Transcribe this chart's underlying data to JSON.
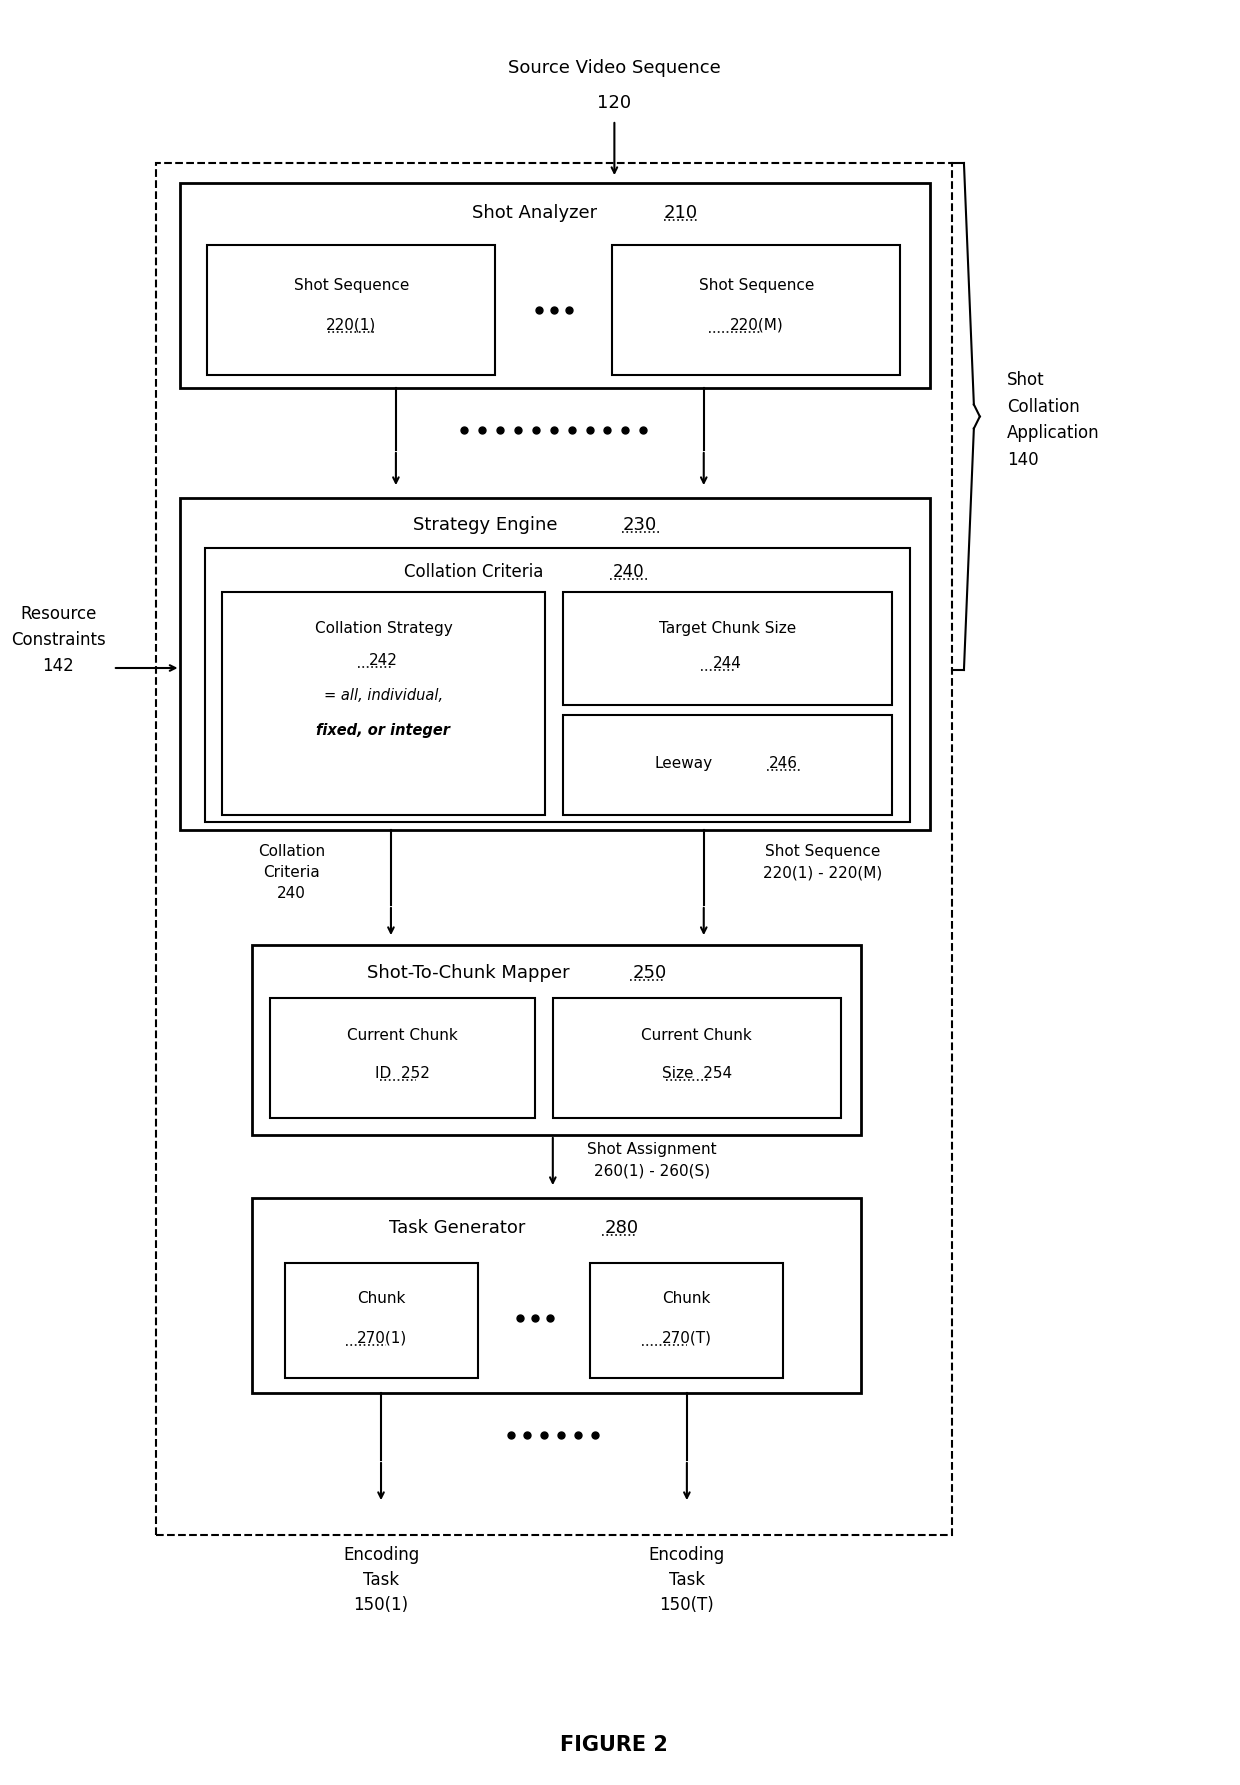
{
  "bg_color": "#ffffff",
  "fig_width": 12.4,
  "fig_height": 17.85,
  "title": "FIGURE 2",
  "source_video_label": "Source Video Sequence",
  "source_video_num": "120",
  "shot_collation_label": "Shot\nCollation\nApplication\n140",
  "resource_constraints_label": "Resource\nConstraints\n142",
  "shot_analyzer_label": "Shot Analyzer",
  "shot_analyzer_num": "210",
  "shot_seq1_line1": "Shot Sequence",
  "shot_seq1_line2": "220(1)",
  "shot_seq2_line1": "Shot Sequence",
  "shot_seq2_line2": "220(M)",
  "strategy_engine_label": "Strategy Engine",
  "strategy_engine_num": "230",
  "collation_criteria_outer_label": "Collation Criteria",
  "collation_criteria_outer_num": "240",
  "collation_strategy_line1": "Collation Strategy",
  "collation_strategy_num": "242",
  "collation_strategy_line3": "= all, individual,",
  "collation_strategy_line4": "fixed, or integer",
  "target_chunk_size_line1": "Target Chunk Size",
  "target_chunk_size_num": "244",
  "leeway_label": "Leeway",
  "leeway_num": "246",
  "collation_criteria_arrow_label": "Collation\nCriteria\n240",
  "shot_sequence_arrow_label": "Shot Sequence\n220(1) - 220(M)",
  "shot_to_chunk_label": "Shot-To-Chunk Mapper",
  "shot_to_chunk_num": "250",
  "current_chunk_id_line1": "Current Chunk",
  "current_chunk_id_line2": "ID  252",
  "current_chunk_size_line1": "Current Chunk",
  "current_chunk_size_line2": "Size  254",
  "shot_assignment_label": "Shot Assignment\n260(1) - 260(S)",
  "task_generator_label": "Task Generator",
  "task_generator_num": "280",
  "chunk1_line1": "Chunk",
  "chunk1_line2": "270(1)",
  "chunk2_line1": "Chunk",
  "chunk2_line2": "270(T)",
  "encoding_task1_label": "Encoding\nTask\n150(1)",
  "encoding_task2_label": "Encoding\nTask\n150(T)"
}
